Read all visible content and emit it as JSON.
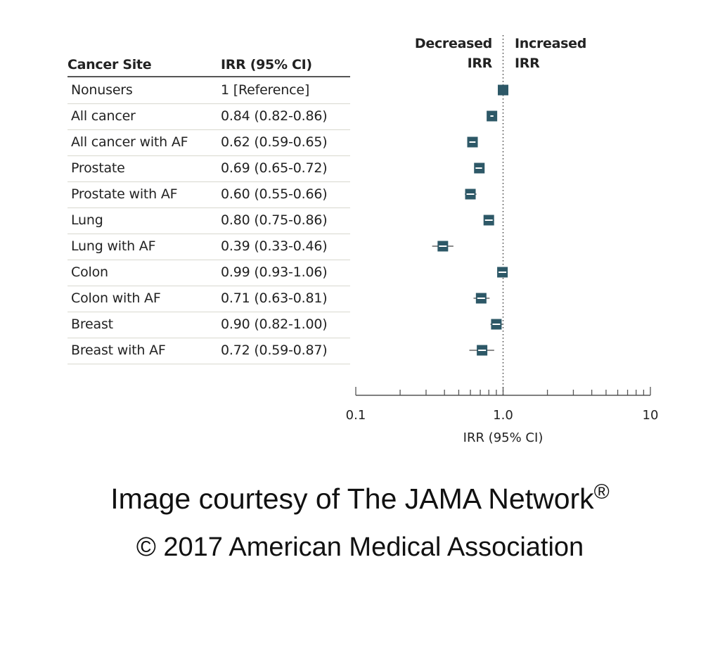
{
  "colors": {
    "marker": "#2d5867",
    "ci_line": "#8a8a8a",
    "axis": "#555555"
  },
  "table": {
    "header_site": "Cancer Site",
    "header_irr": "IRR (95% CI)",
    "rows": [
      {
        "site": "Nonusers",
        "irr_text": "1 [Reference]"
      },
      {
        "site": "All cancer",
        "irr_text": "0.84 (0.82-0.86)"
      },
      {
        "site": "All cancer with AF",
        "irr_text": "0.62 (0.59-0.65)"
      },
      {
        "site": "Prostate",
        "irr_text": "0.69 (0.65-0.72)"
      },
      {
        "site": "Prostate with AF",
        "irr_text": "0.60 (0.55-0.66)"
      },
      {
        "site": "Lung",
        "irr_text": "0.80 (0.75-0.86)"
      },
      {
        "site": "Lung with AF",
        "irr_text": "0.39 (0.33-0.46)"
      },
      {
        "site": "Colon",
        "irr_text": "0.99 (0.93-1.06)"
      },
      {
        "site": "Colon with AF",
        "irr_text": "0.71 (0.63-0.81)"
      },
      {
        "site": "Breast",
        "irr_text": "0.90 (0.82-1.00)"
      },
      {
        "site": "Breast with AF",
        "irr_text": "0.72 (0.59-0.87)"
      }
    ]
  },
  "direction": {
    "left_line1": "Decreased",
    "left_line2": "IRR",
    "right_line1": "Increased",
    "right_line2": "IRR"
  },
  "chart_data": {
    "type": "forest",
    "xscale": "log",
    "xlim": [
      0.1,
      10
    ],
    "xlabel": "IRR (95% CI)",
    "xticks": [
      0.1,
      0.2,
      0.3,
      0.4,
      0.5,
      0.6,
      0.7,
      0.8,
      0.9,
      1,
      2,
      3,
      4,
      5,
      6,
      7,
      8,
      9,
      10
    ],
    "xtick_labels": [
      {
        "value": 0.1,
        "label": "0.1"
      },
      {
        "value": 1,
        "label": "1.0"
      },
      {
        "value": 10,
        "label": "10"
      }
    ],
    "reference_line": 1,
    "categories": [
      "Nonusers",
      "All cancer",
      "All cancer with AF",
      "Prostate",
      "Prostate with AF",
      "Lung",
      "Lung with AF",
      "Colon",
      "Colon with AF",
      "Breast",
      "Breast with AF"
    ],
    "estimates": [
      1,
      0.84,
      0.62,
      0.69,
      0.6,
      0.8,
      0.39,
      0.99,
      0.71,
      0.9,
      0.72
    ],
    "ci_low": [
      1,
      0.82,
      0.59,
      0.65,
      0.55,
      0.75,
      0.33,
      0.93,
      0.63,
      0.82,
      0.59
    ],
    "ci_high": [
      1,
      0.86,
      0.65,
      0.72,
      0.66,
      0.86,
      0.46,
      1.06,
      0.81,
      1.0,
      0.87
    ]
  },
  "credits": {
    "line1": "Image courtesy of The JAMA Network",
    "line1_mark": "®",
    "line2": "© 2017 American Medical Association"
  }
}
